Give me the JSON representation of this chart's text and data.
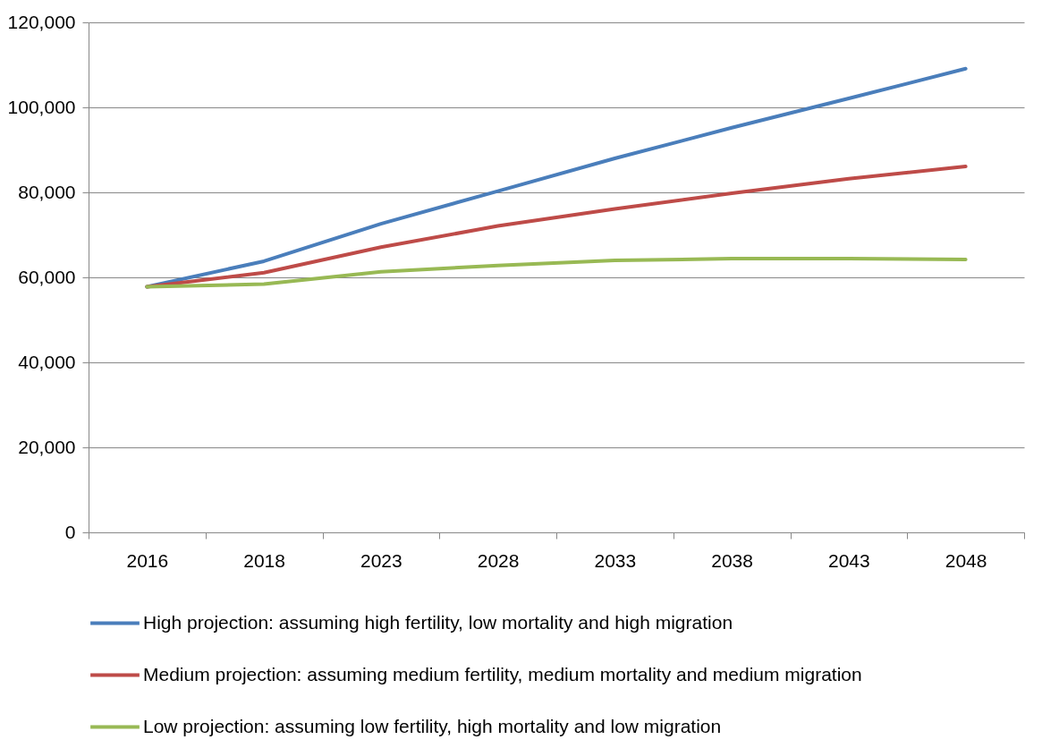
{
  "chart_data": {
    "type": "line",
    "categories": [
      "2016",
      "2018",
      "2023",
      "2028",
      "2033",
      "2038",
      "2043",
      "2048"
    ],
    "series": [
      {
        "name": "High projection: assuming high fertility, low mortality and high migration",
        "color": "#4a7ebb",
        "values": [
          57800,
          63800,
          72600,
          80300,
          88000,
          95200,
          102100,
          109100
        ]
      },
      {
        "name": "Medium projection: assuming medium fertility, medium mortality and medium migration",
        "color": "#be4b48",
        "values": [
          57800,
          61100,
          67100,
          72100,
          76100,
          79800,
          83200,
          86100
        ]
      },
      {
        "name": "Low projection: assuming low fertility, high mortality and low migration",
        "color": "#98b954",
        "values": [
          57800,
          58400,
          61300,
          62800,
          64000,
          64400,
          64400,
          64200
        ]
      }
    ],
    "ylim": [
      0,
      120000
    ],
    "yticks": [
      0,
      {
        "value": 20000,
        "label": "20,000"
      },
      {
        "value": 40000,
        "label": "40,000"
      },
      {
        "value": 60000,
        "label": "60,000"
      },
      {
        "value": 80000,
        "label": "80,000"
      },
      {
        "value": 100000,
        "label": "100,000"
      },
      {
        "value": 120000,
        "label": "120,000"
      }
    ],
    "grid": "y",
    "legend": "bottom",
    "marker": "none",
    "line_style": "solid"
  }
}
